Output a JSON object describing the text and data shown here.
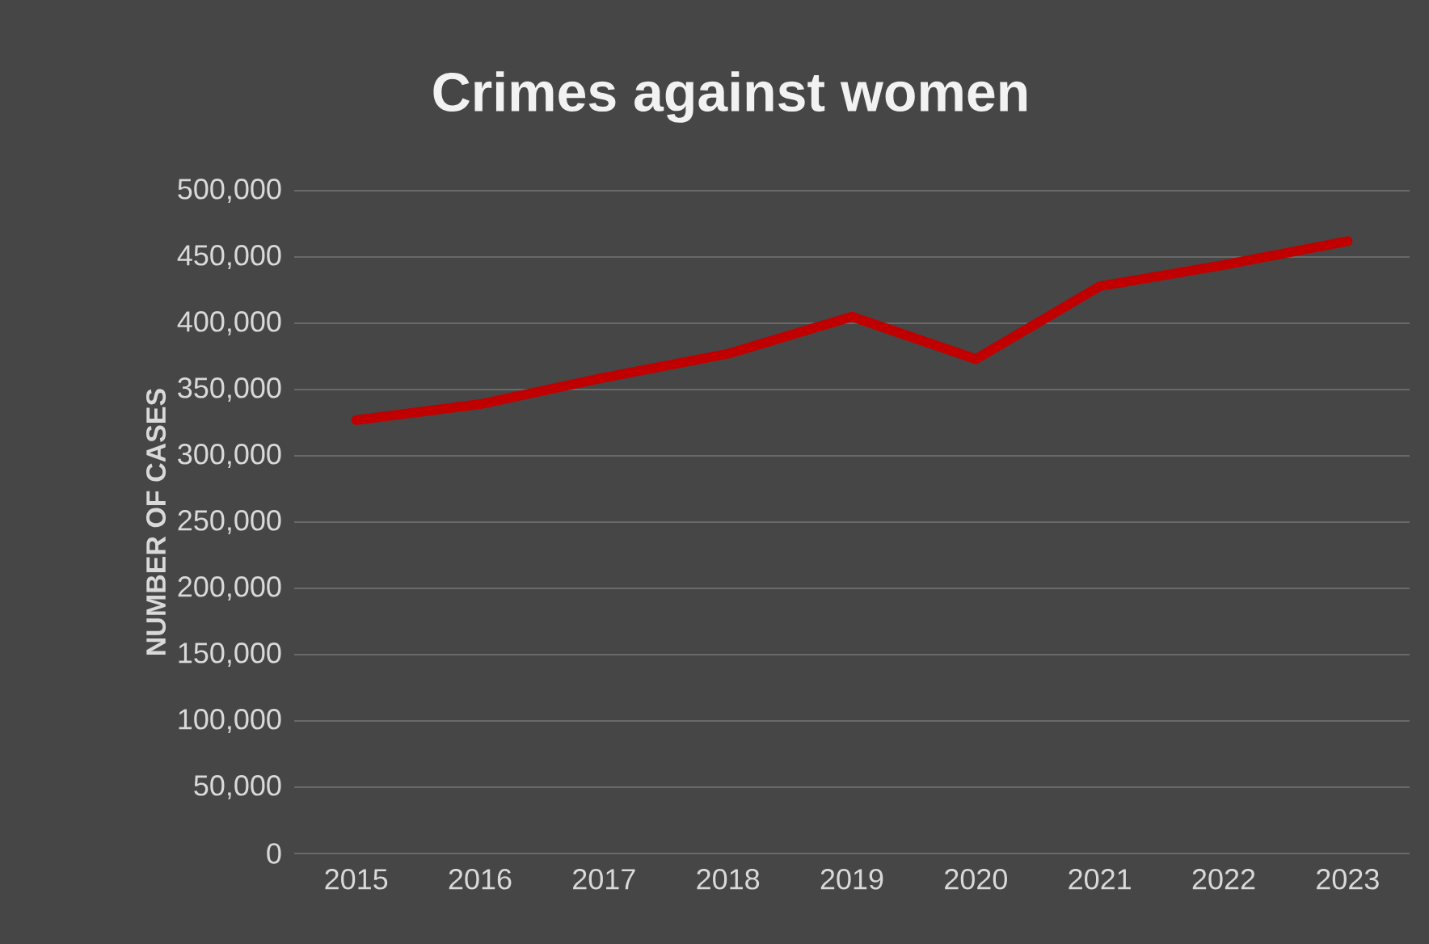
{
  "chart_data": {
    "type": "line",
    "title": "Crimes against women",
    "ylabel": "NUMBER OF CASES",
    "categories": [
      "2015",
      "2016",
      "2017",
      "2018",
      "2019",
      "2020",
      "2021",
      "2022",
      "2023"
    ],
    "series": [
      {
        "color": "#c00000",
        "values": [
          327000,
          339000,
          359000,
          377000,
          405000,
          373000,
          428000,
          444000,
          462000
        ]
      }
    ],
    "ylim": [
      0,
      500000
    ],
    "yticks": [
      {
        "value": 0,
        "label": "0"
      },
      {
        "value": 50000,
        "label": "50,000"
      },
      {
        "value": 100000,
        "label": "100,000"
      },
      {
        "value": 150000,
        "label": "150,000"
      },
      {
        "value": 200000,
        "label": "200,000"
      },
      {
        "value": 250000,
        "label": "250,000"
      },
      {
        "value": 300000,
        "label": "300,000"
      },
      {
        "value": 350000,
        "label": "350,000"
      },
      {
        "value": 400000,
        "label": "400,000"
      },
      {
        "value": 450000,
        "label": "450,000"
      },
      {
        "value": 500000,
        "label": "500,000"
      }
    ],
    "grid": "y",
    "legend": false,
    "marker": "none",
    "line_style": "solid"
  }
}
